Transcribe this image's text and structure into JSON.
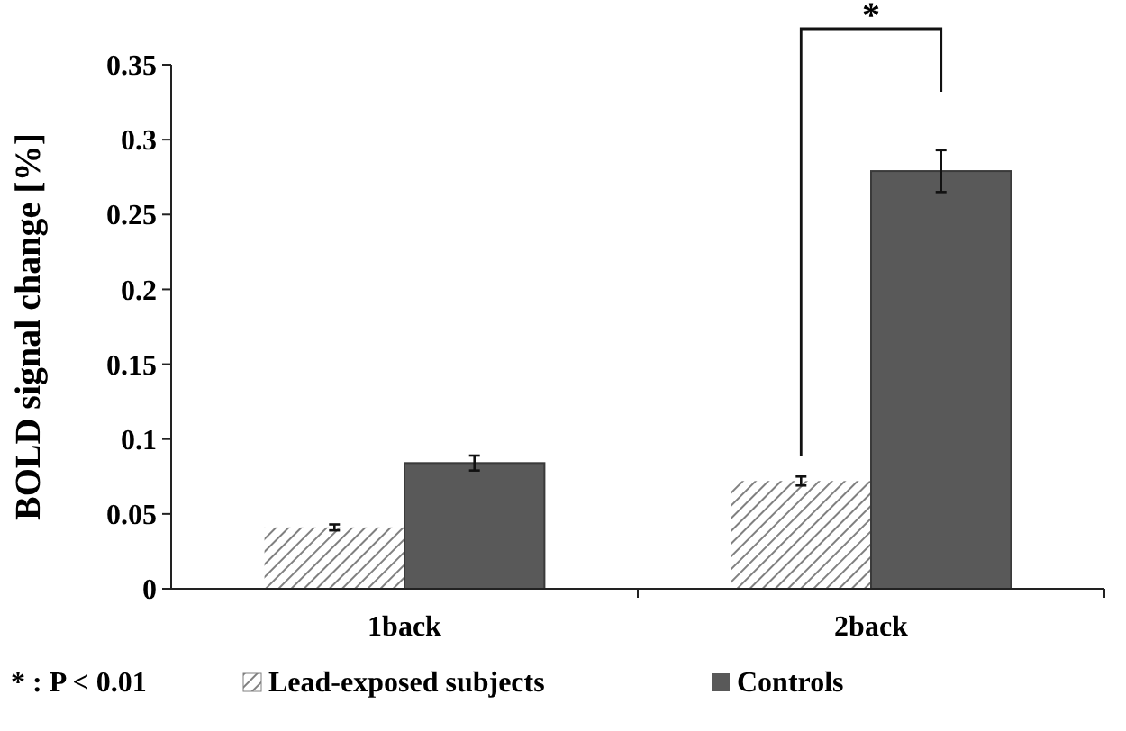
{
  "chart_data": {
    "type": "bar",
    "ylabel": "BOLD signal change [%]",
    "categories": [
      "1back",
      "2back"
    ],
    "series": [
      {
        "name": "Lead-exposed subjects",
        "color": "#808080",
        "values": [
          0.041,
          0.072
        ],
        "errors": [
          0.002,
          0.003
        ]
      },
      {
        "name": "Controls",
        "color": "#595959",
        "values": [
          0.084,
          0.279
        ],
        "errors": [
          0.005,
          0.014
        ]
      }
    ],
    "ylim": [
      0,
      0.35
    ],
    "yticks": [
      0,
      0.05,
      0.1,
      0.15,
      0.2,
      0.25,
      0.3,
      0.35
    ],
    "grid": false,
    "legend": "bottom",
    "annotations": [
      "*",
      "* : P < 0.01"
    ]
  }
}
